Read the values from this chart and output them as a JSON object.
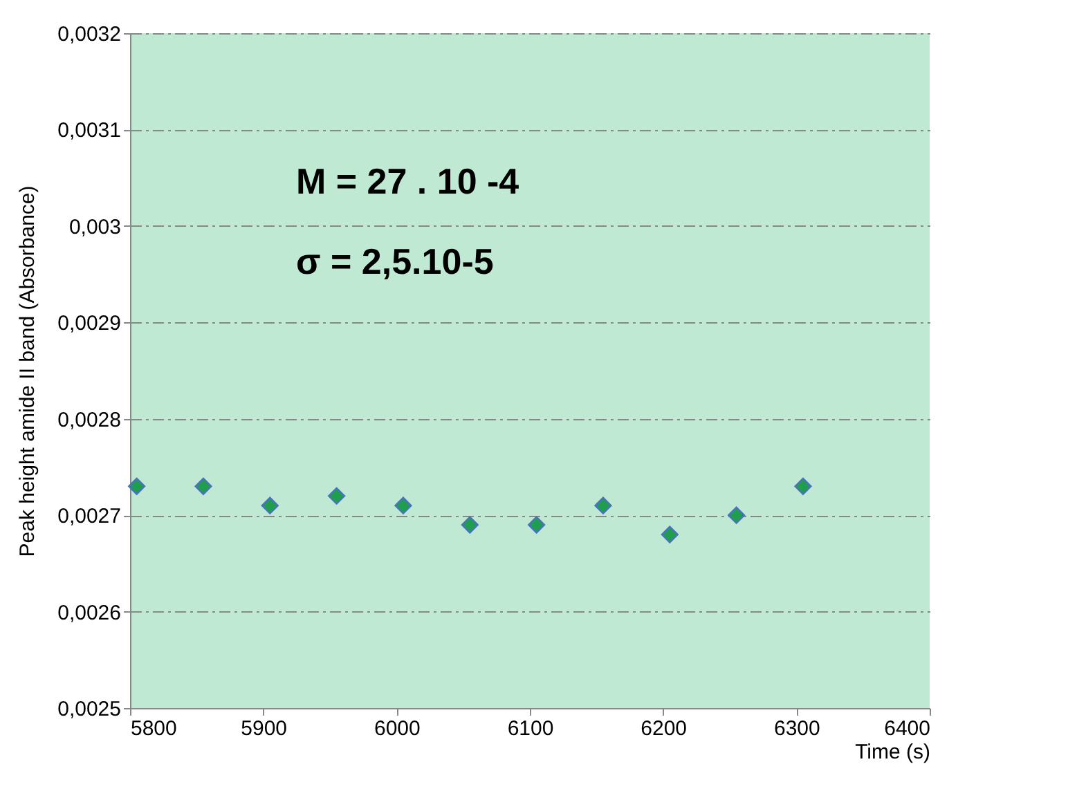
{
  "chart_data": {
    "type": "scatter",
    "xlabel": "Time (s)",
    "ylabel": "Peak height amide II band (Absorbance)",
    "x": [
      5805,
      5855,
      5905,
      5955,
      6005,
      6055,
      6105,
      6155,
      6205,
      6255,
      6305
    ],
    "series": [
      {
        "color": "#1f9e4e",
        "values": [
          0.00273,
          0.00273,
          0.00271,
          0.00272,
          0.00271,
          0.00269,
          0.00269,
          0.00271,
          0.00268,
          0.0027,
          0.00273
        ]
      }
    ],
    "xlim": [
      5800,
      6400
    ],
    "xticks": [
      5800,
      5900,
      6000,
      6100,
      6200,
      6300,
      6400
    ],
    "ylim": [
      0.0025,
      0.0032
    ],
    "yticks": [
      {
        "value": 0.0025,
        "label": "0,0025"
      },
      {
        "value": 0.0026,
        "label": "0,0026"
      },
      {
        "value": 0.0027,
        "label": "0,0027"
      },
      {
        "value": 0.0028,
        "label": "0,0028"
      },
      {
        "value": 0.0029,
        "label": "0,0029"
      },
      {
        "value": 0.003,
        "label": "0,003"
      },
      {
        "value": 0.0031,
        "label": "0,0031"
      },
      {
        "value": 0.0032,
        "label": "0,0032"
      }
    ],
    "grid": "y",
    "marker": "diamond",
    "legend": false,
    "annotations": [
      "M = 27 . 10 -4",
      "σ = 2,5.10-5"
    ]
  }
}
